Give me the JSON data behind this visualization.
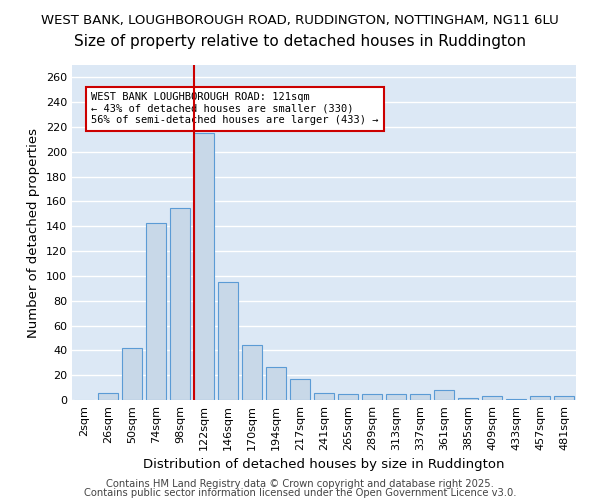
{
  "title1": "WEST BANK, LOUGHBOROUGH ROAD, RUDDINGTON, NOTTINGHAM, NG11 6LU",
  "title2": "Size of property relative to detached houses in Ruddington",
  "xlabel": "Distribution of detached houses by size in Ruddington",
  "ylabel": "Number of detached properties",
  "categories": [
    "2sqm",
    "26sqm",
    "50sqm",
    "74sqm",
    "98sqm",
    "122sqm",
    "146sqm",
    "170sqm",
    "194sqm",
    "217sqm",
    "241sqm",
    "265sqm",
    "289sqm",
    "313sqm",
    "337sqm",
    "361sqm",
    "385sqm",
    "409sqm",
    "433sqm",
    "457sqm",
    "481sqm"
  ],
  "values": [
    0,
    6,
    42,
    143,
    155,
    215,
    95,
    44,
    27,
    17,
    6,
    5,
    5,
    5,
    5,
    8,
    2,
    3,
    1,
    3,
    3
  ],
  "bar_color": "#c8d8e8",
  "bar_edge_color": "#5b9bd5",
  "bar_width": 0.8,
  "red_line_index": 5,
  "red_line_color": "#cc0000",
  "annotation_line1": "WEST BANK LOUGHBOROUGH ROAD: 121sqm",
  "annotation_line2": "← 43% of detached houses are smaller (330)",
  "annotation_line3": "56% of semi-detached houses are larger (433) →",
  "annotation_box_color": "white",
  "annotation_box_edge": "#cc0000",
  "ylim": [
    0,
    270
  ],
  "yticks": [
    0,
    20,
    40,
    60,
    80,
    100,
    120,
    140,
    160,
    180,
    200,
    220,
    240,
    260
  ],
  "background_color": "#dce8f5",
  "grid_color": "white",
  "footer1": "Contains HM Land Registry data © Crown copyright and database right 2025.",
  "footer2": "Contains public sector information licensed under the Open Government Licence v3.0.",
  "title1_fontsize": 9.5,
  "title2_fontsize": 11,
  "tick_fontsize": 8,
  "label_fontsize": 9.5,
  "footer_fontsize": 7.2,
  "annot_fontsize": 7.5
}
